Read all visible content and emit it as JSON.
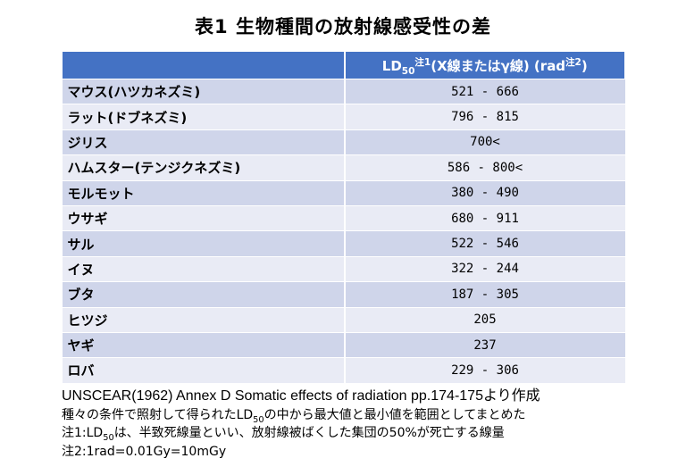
{
  "title": "表1  生物種間の放射線感受性の差",
  "header": {
    "ld": "LD",
    "ld_sub": "50",
    "ld_sup": "注1",
    "ld_rest": "(X線またはγ線) (rad",
    "ld_sup2": "注2",
    "ld_close": ")"
  },
  "rows": [
    {
      "name": "マウス(ハツカネズミ)",
      "value": "521 - 666"
    },
    {
      "name": "ラット(ドブネズミ)",
      "value": "796 - 815"
    },
    {
      "name": "ジリス",
      "value": "700<"
    },
    {
      "name": "ハムスター(テンジクネズミ)",
      "value": "586 - 800<"
    },
    {
      "name": "モルモット",
      "value": "380 - 490"
    },
    {
      "name": "ウサギ",
      "value": "680 - 911"
    },
    {
      "name": "サル",
      "value": "522 - 546"
    },
    {
      "name": "イヌ",
      "value": "322 - 244"
    },
    {
      "name": "ブタ",
      "value": "187 - 305"
    },
    {
      "name": "ヒツジ",
      "value": "205"
    },
    {
      "name": "ヤギ",
      "value": "237"
    },
    {
      "name": "ロバ",
      "value": "229 - 306"
    }
  ],
  "footer": {
    "source": "UNSCEAR(1962) Annex D Somatic effects of radiation pp.174-175より作成",
    "line2_a": "種々の条件で照射して得られたLD",
    "line2_sub": "50",
    "line2_b": "の中から最大値と最小値を範囲としてまとめた",
    "note1_a": "注1:LD",
    "note1_sub": "50",
    "note1_b": "は、半致死線量といい、放射線被ばくした集団の50%が死亡する線量",
    "note2": "注2:1rad=0.01Gy=10mGy"
  }
}
